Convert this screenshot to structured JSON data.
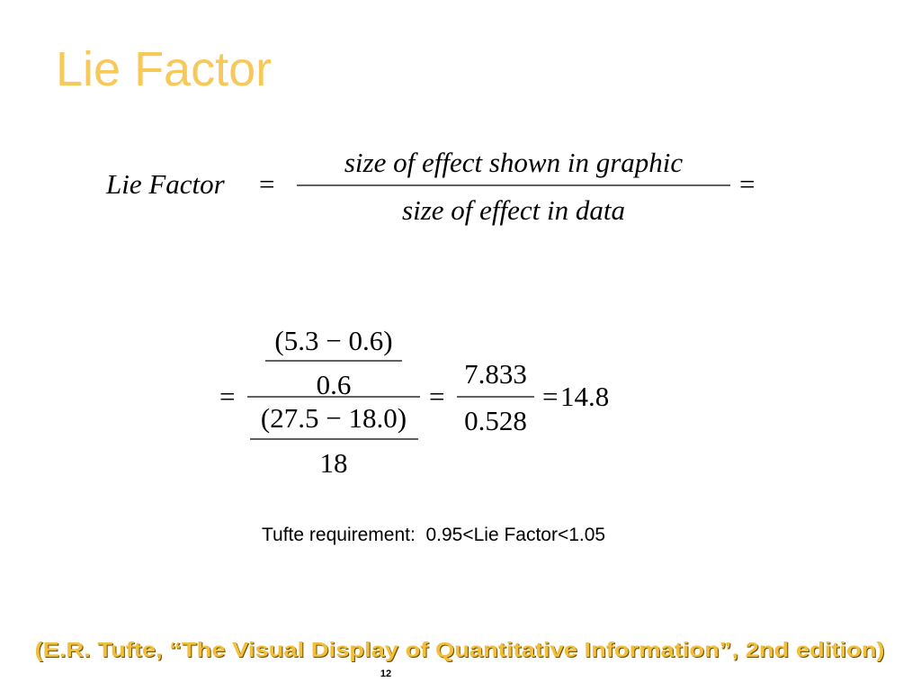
{
  "header": {
    "title": "Lie Factor"
  },
  "definition": {
    "lhs": "Lie Factor",
    "equals": "=",
    "numerator": "size of effect shown in graphic",
    "denominator": "size of effect in data",
    "trailing_equals": "="
  },
  "computation": {
    "equals_1": "=",
    "outer_top": {
      "numerator": "(5.3 − 0.6)",
      "denominator": "0.6"
    },
    "outer_bottom": {
      "numerator": "(27.5 − 18.0)",
      "denominator": "18"
    },
    "equals_2": "=",
    "ratio": {
      "numerator": "7.833",
      "denominator": "0.528"
    },
    "equals_3": "=",
    "result": "14.8"
  },
  "note": "Tufte requirement:  0.95<Lie Factor<1.05",
  "citation": "(E.R. Tufte, “The Visual Display of Quantitative Information”, 2nd edition)",
  "page_number": "12"
}
